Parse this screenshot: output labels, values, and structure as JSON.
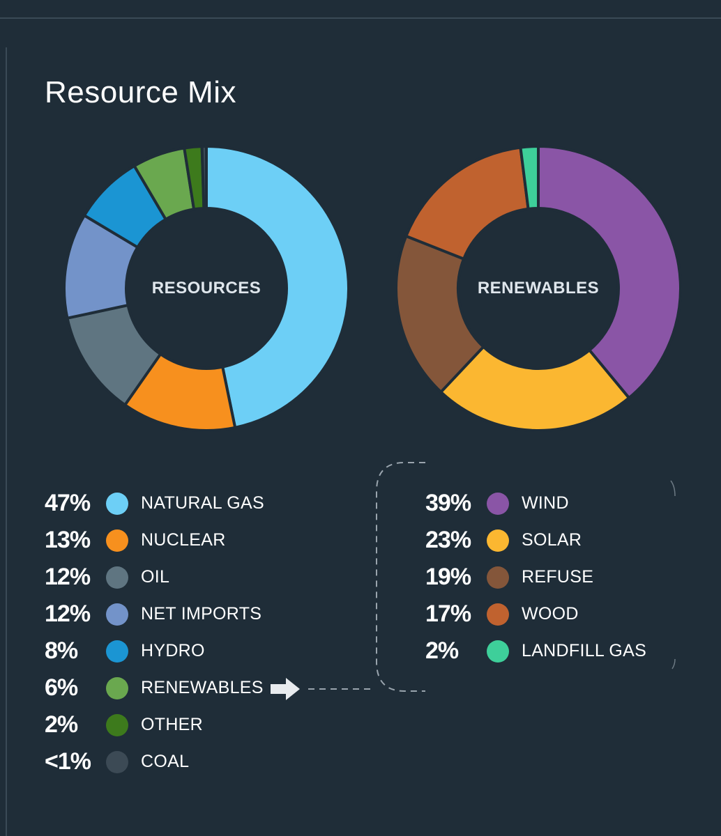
{
  "title": "Resource Mix",
  "chart_data": [
    {
      "type": "pie",
      "title": "RESOURCES",
      "slices": [
        {
          "label": "NATURAL GAS",
          "value": 47,
          "display": "47%",
          "color": "#6dcff6"
        },
        {
          "label": "NUCLEAR",
          "value": 13,
          "display": "13%",
          "color": "#f7901e"
        },
        {
          "label": "OIL",
          "value": 12,
          "display": "12%",
          "color": "#5f7581"
        },
        {
          "label": "NET IMPORTS",
          "value": 12,
          "display": "12%",
          "color": "#7393c9"
        },
        {
          "label": "HYDRO",
          "value": 8,
          "display": "8%",
          "color": "#1b95d3"
        },
        {
          "label": "RENEWABLES",
          "value": 6,
          "display": "6%",
          "color": "#6aa84f"
        },
        {
          "label": "OTHER",
          "value": 2,
          "display": "2%",
          "color": "#3d7a1c"
        },
        {
          "label": "COAL",
          "value": 0.5,
          "display": "<1%",
          "color": "#3c4a55"
        }
      ]
    },
    {
      "type": "pie",
      "title": "RENEWABLES",
      "slices": [
        {
          "label": "WIND",
          "value": 39,
          "display": "39%",
          "color": "#8a55a6"
        },
        {
          "label": "SOLAR",
          "value": 23,
          "display": "23%",
          "color": "#fbb731"
        },
        {
          "label": "REFUSE",
          "value": 19,
          "display": "19%",
          "color": "#84563a"
        },
        {
          "label": "WOOD",
          "value": 17,
          "display": "17%",
          "color": "#c0622f"
        },
        {
          "label": "LANDFILL GAS",
          "value": 2,
          "display": "2%",
          "color": "#3ecf9a"
        }
      ]
    }
  ],
  "icons": {
    "arrow": "right-arrow-icon"
  }
}
